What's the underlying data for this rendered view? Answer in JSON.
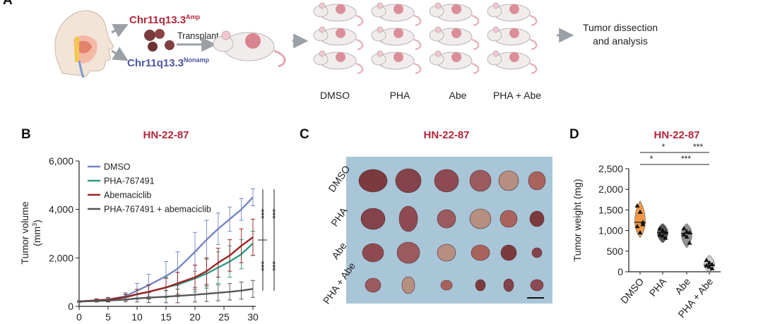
{
  "panel_a": {
    "label": "A",
    "group_amp": "Chr11q13.3",
    "group_amp_sup": "Amp",
    "group_nonamp": "Chr11q13.3",
    "group_nonamp_sup": "Nonamp",
    "transplant": "Transplant",
    "outcome_line1": "Tumor dissection",
    "outcome_line2": "and analysis",
    "groups": [
      "DMSO",
      "PHA",
      "Abe",
      "PHA + Abe"
    ],
    "colors": {
      "amp": "#b3263a",
      "nonamp": "#4a55a2"
    }
  },
  "chart_data": [
    {
      "panel": "B",
      "type": "line",
      "title": "HN-22-87",
      "xlabel": "",
      "ylabel_line1": "Tumor volume",
      "ylabel_line2": "(mm",
      "ylabel_sup": "3",
      "ylabel_end": ")",
      "xlim": [
        0,
        30
      ],
      "ylim": [
        0,
        6000
      ],
      "x_ticks": [
        0,
        5,
        10,
        15,
        20,
        25,
        30
      ],
      "y_ticks": [
        0,
        2000,
        4000,
        6000
      ],
      "y_tick_labels": [
        "0",
        "2,000",
        "4,000",
        "6,000"
      ],
      "x": [
        0,
        3,
        5,
        8,
        10,
        12,
        15,
        17,
        20,
        22,
        24,
        26,
        28,
        30
      ],
      "series": [
        {
          "name": "DMSO",
          "color": "#7586c4",
          "values": [
            200,
            250,
            280,
            420,
            650,
            870,
            1250,
            1550,
            2250,
            2750,
            3200,
            3600,
            4000,
            4500
          ],
          "err": [
            30,
            60,
            90,
            150,
            300,
            450,
            600,
            700,
            800,
            800,
            650,
            500,
            450,
            350
          ]
        },
        {
          "name": "PHA-767491",
          "color": "#2e9a86",
          "values": [
            200,
            240,
            270,
            370,
            500,
            600,
            780,
            900,
            1150,
            1350,
            1600,
            1850,
            2150,
            2600
          ],
          "err": [
            30,
            50,
            80,
            120,
            200,
            300,
            420,
            500,
            550,
            600,
            650,
            650,
            600,
            500
          ]
        },
        {
          "name": "Abemaciclib",
          "color": "#9b2323",
          "values": [
            200,
            250,
            280,
            380,
            500,
            600,
            780,
            950,
            1200,
            1450,
            1800,
            2100,
            2500,
            2850
          ],
          "err": [
            30,
            50,
            80,
            130,
            200,
            280,
            380,
            450,
            500,
            550,
            600,
            650,
            700,
            750
          ]
        },
        {
          "name": "PHA-767491 + abemaciclib",
          "color": "#555555",
          "values": [
            200,
            220,
            240,
            280,
            330,
            360,
            400,
            430,
            480,
            520,
            560,
            600,
            650,
            720
          ],
          "err": [
            20,
            40,
            60,
            90,
            150,
            200,
            250,
            280,
            300,
            320,
            330,
            340,
            350,
            350
          ]
        }
      ],
      "significance": [
        "***",
        "***",
        "***",
        "***"
      ]
    },
    {
      "panel": "D",
      "type": "violin",
      "title": "HN-22-87",
      "ylabel": "Tumor weight (mg)",
      "ylim": [
        0,
        2500
      ],
      "y_ticks": [
        0,
        500,
        1000,
        1500,
        2000,
        2500
      ],
      "y_tick_labels": [
        "0",
        "500",
        "1,000",
        "1,500",
        "2,000",
        "2,500"
      ],
      "categories": [
        "DMSO",
        "PHA",
        "Abe",
        "PHA + Abe"
      ],
      "colors": [
        "#f0933e",
        "#4d4d4d",
        "#8c8c8c",
        "#cfcfcf"
      ],
      "points": [
        [
          1600,
          1450,
          1200,
          1100,
          950,
          1150
        ],
        [
          1050,
          1000,
          950,
          900,
          870,
          820
        ],
        [
          1050,
          980,
          950,
          900,
          850,
          700
        ],
        [
          280,
          220,
          180,
          150,
          120,
          80
        ]
      ],
      "medians": [
        1200,
        950,
        930,
        160
      ],
      "significance": [
        {
          "pair": [
            "DMSO",
            "Abe"
          ],
          "label": "*"
        },
        {
          "pair": [
            "Abe",
            "PHA + Abe"
          ],
          "label": "***"
        },
        {
          "pair": [
            "DMSO",
            "PHA"
          ],
          "label": "*"
        },
        {
          "pair": [
            "PHA",
            "PHA + Abe"
          ],
          "label": "***"
        }
      ]
    }
  ],
  "panel_c": {
    "label": "C",
    "title": "HN-22-87",
    "row_labels": [
      "DMSO",
      "PHA",
      "Abe",
      "PHA + Abe"
    ],
    "background": "#a8c6d8"
  }
}
